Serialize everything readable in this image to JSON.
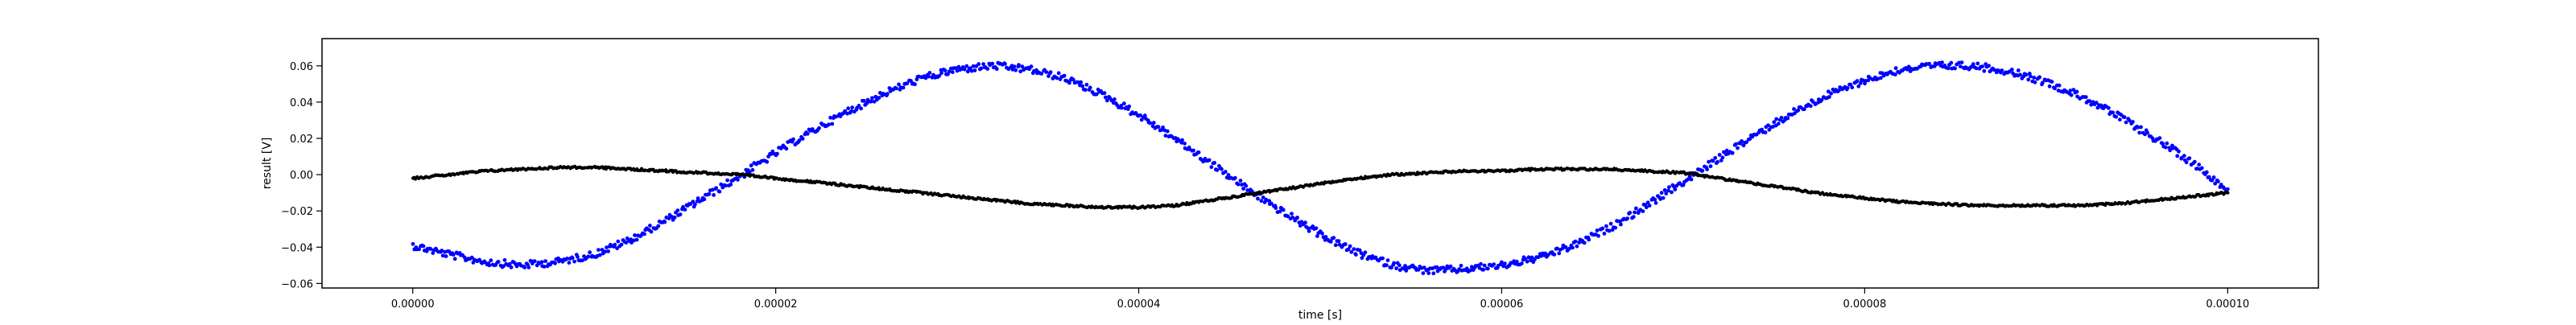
{
  "chart_data": {
    "type": "scatter",
    "title": "",
    "xlabel": "time [s]",
    "ylabel": "result [V]",
    "xlim": [
      -5e-06,
      0.000105
    ],
    "ylim": [
      -0.0625,
      0.075
    ],
    "x_ticks": [
      0.0,
      2e-05,
      4e-05,
      6e-05,
      8e-05,
      0.0001
    ],
    "x_tick_labels": [
      "0.00000",
      "0.00002",
      "0.00004",
      "0.00006",
      "0.00008",
      "0.00010"
    ],
    "y_ticks": [
      -0.06,
      -0.04,
      -0.02,
      0.0,
      0.02,
      0.04,
      0.06
    ],
    "y_tick_labels": [
      "−0.06",
      "−0.04",
      "−0.02",
      "0.00",
      "0.02",
      "0.04",
      "0.06"
    ],
    "grid": false,
    "legend": "none",
    "series": [
      {
        "color": "#0000ff",
        "marker": "dot",
        "x": [
          0.0,
          2e-06,
          4e-06,
          6e-06,
          8e-06,
          1e-05,
          1.2e-05,
          1.4e-05,
          1.6e-05,
          1.8e-05,
          2e-05,
          2.2e-05,
          2.4e-05,
          2.6e-05,
          2.8e-05,
          3e-05,
          3.2e-05,
          3.4e-05,
          3.6e-05,
          3.8e-05,
          4e-05,
          4.2e-05,
          4.4e-05,
          4.6e-05,
          4.8e-05,
          5e-05,
          5.2e-05,
          5.4e-05,
          5.6e-05,
          5.8e-05,
          6e-05,
          6.2e-05,
          6.4e-05,
          6.6e-05,
          6.8e-05,
          7e-05,
          7.2e-05,
          7.4e-05,
          7.6e-05,
          7.8e-05,
          8e-05,
          8.2e-05,
          8.4e-05,
          8.6e-05,
          8.8e-05,
          9e-05,
          9.2e-05,
          9.4e-05,
          9.6e-05,
          9.8e-05,
          0.0001
        ],
        "y": [
          -0.039,
          -0.044,
          -0.048,
          -0.05,
          -0.048,
          -0.044,
          -0.036,
          -0.025,
          -0.013,
          -0.001,
          0.012,
          0.024,
          0.035,
          0.045,
          0.053,
          0.058,
          0.06,
          0.058,
          0.053,
          0.044,
          0.033,
          0.02,
          0.006,
          -0.008,
          -0.021,
          -0.033,
          -0.043,
          -0.05,
          -0.053,
          -0.052,
          -0.05,
          -0.046,
          -0.039,
          -0.029,
          -0.017,
          -0.004,
          0.009,
          0.022,
          0.034,
          0.044,
          0.052,
          0.058,
          0.06,
          0.06,
          0.057,
          0.051,
          0.043,
          0.032,
          0.02,
          0.007,
          -0.008
        ]
      },
      {
        "color": "#000000",
        "marker": "dot",
        "x": [
          0.0,
          2e-06,
          4e-06,
          6e-06,
          8e-06,
          1e-05,
          1.2e-05,
          1.4e-05,
          1.6e-05,
          1.8e-05,
          2e-05,
          2.2e-05,
          2.4e-05,
          2.6e-05,
          2.8e-05,
          3e-05,
          3.2e-05,
          3.4e-05,
          3.6e-05,
          3.8e-05,
          4e-05,
          4.2e-05,
          4.4e-05,
          4.6e-05,
          4.8e-05,
          5e-05,
          5.2e-05,
          5.4e-05,
          5.6e-05,
          5.8e-05,
          6e-05,
          6.2e-05,
          6.4e-05,
          6.6e-05,
          6.8e-05,
          7e-05,
          7.2e-05,
          7.4e-05,
          7.6e-05,
          7.8e-05,
          8e-05,
          8.2e-05,
          8.4e-05,
          8.6e-05,
          8.8e-05,
          9e-05,
          9.2e-05,
          9.4e-05,
          9.6e-05,
          9.8e-05,
          0.0001
        ],
        "y": [
          -0.002,
          0.0,
          0.002,
          0.003,
          0.004,
          0.004,
          0.003,
          0.002,
          0.001,
          0.0,
          -0.002,
          -0.004,
          -0.006,
          -0.008,
          -0.01,
          -0.012,
          -0.014,
          -0.016,
          -0.017,
          -0.018,
          -0.018,
          -0.017,
          -0.014,
          -0.011,
          -0.008,
          -0.005,
          -0.002,
          0.0,
          0.001,
          0.002,
          0.002,
          0.003,
          0.003,
          0.003,
          0.002,
          0.001,
          -0.002,
          -0.005,
          -0.008,
          -0.011,
          -0.013,
          -0.015,
          -0.016,
          -0.017,
          -0.017,
          -0.017,
          -0.017,
          -0.016,
          -0.014,
          -0.012,
          -0.01
        ]
      }
    ]
  }
}
